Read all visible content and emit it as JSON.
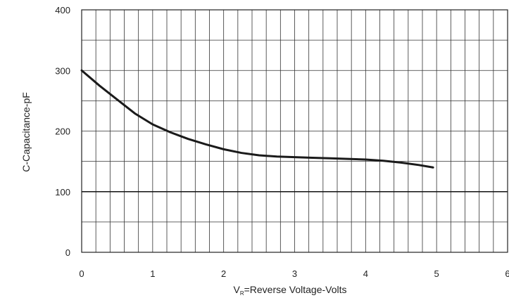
{
  "chart_data": {
    "type": "line",
    "title": "",
    "xlabel": {
      "prefix": "V",
      "subscript": "R",
      "suffix": "=Reverse Voltage-Volts"
    },
    "ylabel": "C-Capacitance-pF",
    "xlim": [
      0,
      6
    ],
    "ylim": [
      0,
      400
    ],
    "x_ticks": [
      "0",
      "1",
      "2",
      "3",
      "4",
      "5",
      "6"
    ],
    "y_ticks": [
      "0",
      "100",
      "200",
      "300",
      "400"
    ],
    "grid": true,
    "series": [
      {
        "x": [
          0,
          0.25,
          0.5,
          0.75,
          1.0,
          1.25,
          1.5,
          1.75,
          2.0,
          2.25,
          2.5,
          2.75,
          3.0,
          3.25,
          3.5,
          3.75,
          4.0,
          4.25,
          4.5,
          4.75,
          4.95
        ],
        "y": [
          300,
          275,
          252,
          229,
          211,
          198,
          187,
          178,
          170,
          164,
          160,
          158,
          157,
          156,
          155,
          154,
          153,
          151,
          148,
          144,
          140
        ]
      }
    ]
  }
}
